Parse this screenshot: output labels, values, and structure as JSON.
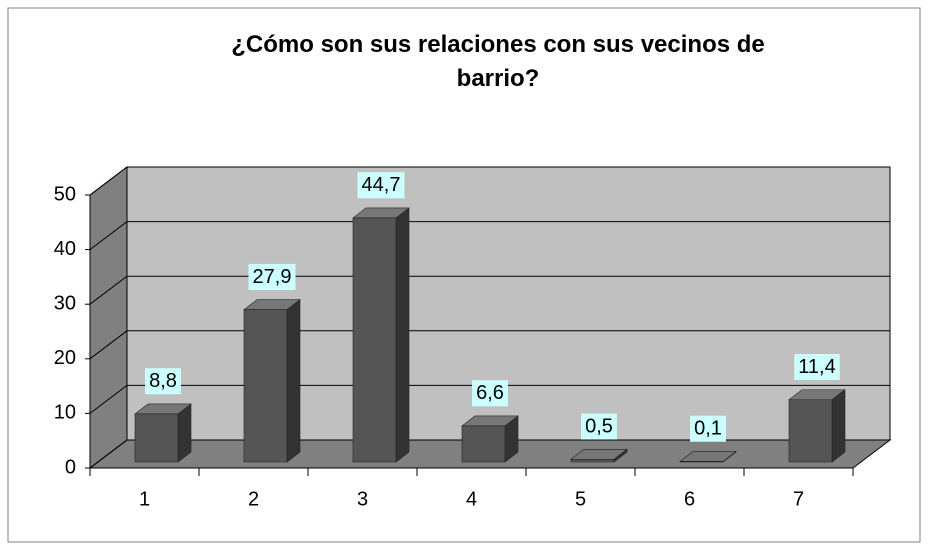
{
  "chart_data": {
    "type": "bar3d",
    "title": "¿Cómo son sus relaciones con sus vecinos de barrio?",
    "categories": [
      "1",
      "2",
      "3",
      "4",
      "5",
      "6",
      "7"
    ],
    "values": [
      8.8,
      27.9,
      44.7,
      6.6,
      0.5,
      0.1,
      11.4
    ],
    "value_labels": [
      "8,8",
      "27,9",
      "44,7",
      "6,6",
      "0,5",
      "0,1",
      "11,4"
    ],
    "color": "#555555",
    "ylim": [
      0,
      50
    ],
    "yticks": [
      0,
      10,
      20,
      30,
      40,
      50
    ],
    "grid": true
  }
}
